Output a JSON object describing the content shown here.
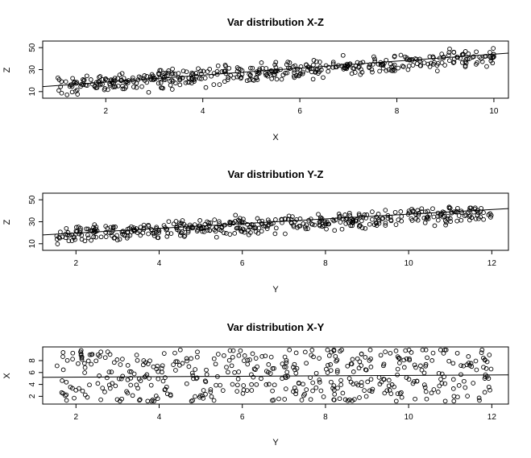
{
  "chart_data": [
    {
      "type": "scatter",
      "title": "Var distribution X-Z",
      "xlabel": "X",
      "ylabel": "Z",
      "xlim": [
        0.7,
        10.3
      ],
      "ylim": [
        4,
        56
      ],
      "xticks": [
        2,
        4,
        6,
        8,
        10
      ],
      "yticks": [
        10,
        30,
        50
      ],
      "xtick_labels": [
        "2",
        "4",
        "6",
        "8",
        "10"
      ],
      "ytick_labels": [
        "10",
        "30",
        "50"
      ],
      "grid": false,
      "marker": "open-circle",
      "n_points": 450,
      "x_range": [
        1.0,
        10.0
      ],
      "trend": {
        "slope": 3.0,
        "intercept": 12.0,
        "spread": 8.5
      },
      "fit_line": {
        "x": [
          0.7,
          10.3
        ],
        "y": [
          14.5,
          45.0
        ]
      }
    },
    {
      "type": "scatter",
      "title": "Var distribution Y-Z",
      "xlabel": "Y",
      "ylabel": "Z",
      "xlim": [
        1.2,
        12.4
      ],
      "ylim": [
        4,
        56
      ],
      "xticks": [
        2,
        4,
        6,
        8,
        10,
        12
      ],
      "yticks": [
        10,
        30,
        50
      ],
      "xtick_labels": [
        "2",
        "4",
        "6",
        "8",
        "10",
        "12"
      ],
      "ytick_labels": [
        "10",
        "30",
        "50"
      ],
      "grid": false,
      "marker": "open-circle",
      "n_points": 450,
      "x_range": [
        1.5,
        12.0
      ],
      "trend": {
        "slope": 2.0,
        "intercept": 14.0,
        "spread": 8.0
      },
      "fit_line": {
        "x": [
          1.2,
          12.4
        ],
        "y": [
          18.0,
          42.0
        ]
      }
    },
    {
      "type": "scatter",
      "title": "Var distribution X-Y",
      "xlabel": "Y",
      "ylabel": "X",
      "xlim": [
        1.2,
        12.4
      ],
      "ylim": [
        0.7,
        10.3
      ],
      "xticks": [
        2,
        4,
        6,
        8,
        10,
        12
      ],
      "yticks": [
        2,
        4,
        6,
        8
      ],
      "xtick_labels": [
        "2",
        "4",
        "6",
        "8",
        "10",
        "12"
      ],
      "ytick_labels": [
        "2",
        "4",
        "6",
        "8"
      ],
      "grid": false,
      "marker": "open-circle",
      "n_points": 450,
      "x_range": [
        1.5,
        12.0
      ],
      "y_range": [
        1.0,
        10.0
      ],
      "fit_line": {
        "x": [
          1.2,
          12.4
        ],
        "y": [
          5.2,
          5.6
        ]
      }
    }
  ]
}
